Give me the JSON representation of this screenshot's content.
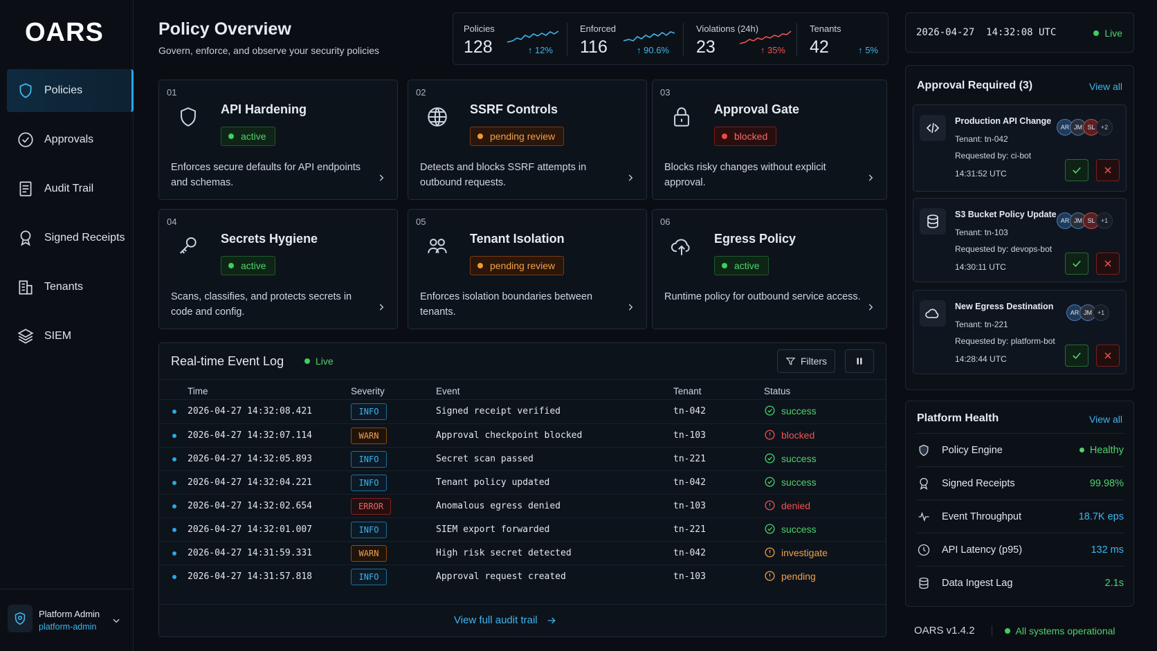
{
  "app": {
    "logo": "OARS",
    "version": "OARS v1.4.2",
    "system_status": "All systems operational"
  },
  "sidebar": {
    "items": [
      {
        "label": "Policies",
        "icon": "shield-icon",
        "active": true
      },
      {
        "label": "Approvals",
        "icon": "check-circle-icon"
      },
      {
        "label": "Audit Trail",
        "icon": "document-icon"
      },
      {
        "label": "Signed Receipts",
        "icon": "ribbon-icon"
      },
      {
        "label": "Tenants",
        "icon": "building-icon"
      },
      {
        "label": "SIEM",
        "icon": "layers-icon"
      }
    ],
    "user": {
      "name": "Platform Admin",
      "handle": "platform-admin"
    }
  },
  "header": {
    "title": "Policy Overview",
    "subtitle": "Govern, enforce, and observe your security policies"
  },
  "stats": [
    {
      "label": "Policies",
      "value": "128",
      "change": "↑ 12%",
      "color": "#3fb5ee"
    },
    {
      "label": "Enforced",
      "value": "116",
      "change": "↑ 90.6%",
      "color": "#3fb5ee"
    },
    {
      "label": "Violations (24h)",
      "value": "23",
      "change": "↑ 35%",
      "color": "#f25252"
    },
    {
      "label": "Tenants",
      "value": "42",
      "change": "↑ 5%",
      "color": "#3fb5ee"
    }
  ],
  "clock": {
    "datetime": "2026-04-27  14:32:08 UTC",
    "live": "Live"
  },
  "policies": [
    {
      "num": "01",
      "title": "API Hardening",
      "status": "active",
      "desc": "Enforces secure defaults for API endpoints and schemas.",
      "icon": "shield-icon"
    },
    {
      "num": "02",
      "title": "SSRF Controls",
      "status": "pending review",
      "desc": "Detects and blocks SSRF attempts in outbound requests.",
      "icon": "globe-icon"
    },
    {
      "num": "03",
      "title": "Approval Gate",
      "status": "blocked",
      "desc": "Blocks risky changes without explicit approval.",
      "icon": "lock-icon"
    },
    {
      "num": "04",
      "title": "Secrets Hygiene",
      "status": "active",
      "desc": "Scans, classifies, and protects secrets in code and config.",
      "icon": "key-icon"
    },
    {
      "num": "05",
      "title": "Tenant Isolation",
      "status": "pending review",
      "desc": "Enforces isolation boundaries between tenants.",
      "icon": "users-icon"
    },
    {
      "num": "06",
      "title": "Egress Policy",
      "status": "active",
      "desc": "Runtime policy for outbound service access.",
      "icon": "cloud-upload-icon"
    }
  ],
  "log": {
    "title": "Real-time Event Log",
    "live": "Live",
    "filters": "Filters",
    "columns": [
      "Time",
      "Severity",
      "Event",
      "Tenant",
      "Status"
    ],
    "rows": [
      {
        "time": "2026-04-27 14:32:08.421",
        "sev": "INFO",
        "event": "Signed receipt verified",
        "tenant": "tn-042",
        "status": "success"
      },
      {
        "time": "2026-04-27 14:32:07.114",
        "sev": "WARN",
        "event": "Approval checkpoint blocked",
        "tenant": "tn-103",
        "status": "blocked"
      },
      {
        "time": "2026-04-27 14:32:05.893",
        "sev": "INFO",
        "event": "Secret scan passed",
        "tenant": "tn-221",
        "status": "success"
      },
      {
        "time": "2026-04-27 14:32:04.221",
        "sev": "INFO",
        "event": "Tenant policy updated",
        "tenant": "tn-042",
        "status": "success"
      },
      {
        "time": "2026-04-27 14:32:02.654",
        "sev": "ERROR",
        "event": "Anomalous egress denied",
        "tenant": "tn-103",
        "status": "denied"
      },
      {
        "time": "2026-04-27 14:32:01.007",
        "sev": "INFO",
        "event": "SIEM export forwarded",
        "tenant": "tn-221",
        "status": "success"
      },
      {
        "time": "2026-04-27 14:31:59.331",
        "sev": "WARN",
        "event": "High risk secret detected",
        "tenant": "tn-042",
        "status": "investigate"
      },
      {
        "time": "2026-04-27 14:31:57.818",
        "sev": "INFO",
        "event": "Approval request created",
        "tenant": "tn-103",
        "status": "pending"
      }
    ],
    "view_full": "View full audit trail"
  },
  "approvals": {
    "title": "Approval Required (3)",
    "view_all": "View all",
    "items": [
      {
        "title": "Production API Change",
        "tenant": "Tenant:  tn-042",
        "requested": "Requested by:  ci-bot",
        "time": "14:31:52 UTC",
        "avatars": [
          "AR",
          "JM",
          "SL"
        ],
        "more": "+2",
        "icon": "code-icon"
      },
      {
        "title": "S3 Bucket Policy Update",
        "tenant": "Tenant:  tn-103",
        "requested": "Requested by:  devops-bot",
        "time": "14:30:11 UTC",
        "avatars": [
          "AR",
          "JM",
          "SL"
        ],
        "more": "+1",
        "icon": "database-icon"
      },
      {
        "title": "New Egress Destination",
        "tenant": "Tenant:  tn-221",
        "requested": "Requested by:  platform-bot",
        "time": "14:28:44 UTC",
        "avatars": [
          "AR",
          "JM"
        ],
        "more": "+1",
        "icon": "cloud-icon"
      }
    ]
  },
  "health": {
    "title": "Platform Health",
    "view_all": "View all",
    "items": [
      {
        "label": "Policy Engine",
        "value": "Healthy",
        "color": "#4fd36c",
        "icon": "shield-icon"
      },
      {
        "label": "Signed Receipts",
        "value": "99.98%",
        "color": "#4fd36c",
        "icon": "ribbon-icon"
      },
      {
        "label": "Event Throughput",
        "value": "18.7K eps",
        "color": "#3fb5ee",
        "icon": "pulse-icon"
      },
      {
        "label": "API Latency (p95)",
        "value": "132 ms",
        "color": "#3fb5ee",
        "icon": "clock-icon"
      },
      {
        "label": "Data Ingest Lag",
        "value": "2.1s",
        "color": "#4fd36c",
        "icon": "database-icon"
      }
    ]
  }
}
